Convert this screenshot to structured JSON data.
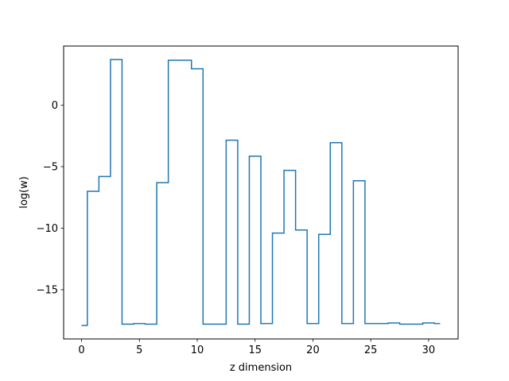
{
  "chart_data": {
    "type": "line",
    "drawstyle": "steps-mid",
    "title": "",
    "xlabel": "z dimension",
    "ylabel": "log(w)",
    "xlim": [
      -1.55,
      32.55
    ],
    "ylim": [
      -19.0,
      4.8
    ],
    "x_ticks": [
      0,
      5,
      10,
      15,
      20,
      25,
      30
    ],
    "x_tick_labels": [
      "0",
      "5",
      "10",
      "15",
      "20",
      "25",
      "30"
    ],
    "y_ticks": [
      -15,
      -10,
      -5,
      0
    ],
    "y_tick_labels": [
      "−15",
      "−10",
      "−5",
      "0"
    ],
    "grid": false,
    "legend": "none",
    "series": [
      {
        "color": "#1f77b4",
        "x": [
          0,
          1,
          2,
          3,
          4,
          5,
          6,
          7,
          8,
          9,
          10,
          11,
          12,
          13,
          14,
          15,
          16,
          17,
          18,
          19,
          20,
          21,
          22,
          23,
          24,
          25,
          26,
          27,
          28,
          29,
          30,
          31
        ],
        "values": [
          -17.9,
          -7.0,
          -5.8,
          3.7,
          -17.8,
          -17.75,
          -17.8,
          -6.3,
          3.65,
          3.65,
          2.95,
          -17.8,
          -17.8,
          -2.85,
          -17.8,
          -4.15,
          -17.75,
          -10.4,
          -5.3,
          -10.15,
          -17.75,
          -10.5,
          -3.05,
          -17.75,
          -6.15,
          -17.75,
          -17.75,
          -17.7,
          -17.8,
          -17.8,
          -17.7,
          -17.75
        ]
      }
    ]
  }
}
